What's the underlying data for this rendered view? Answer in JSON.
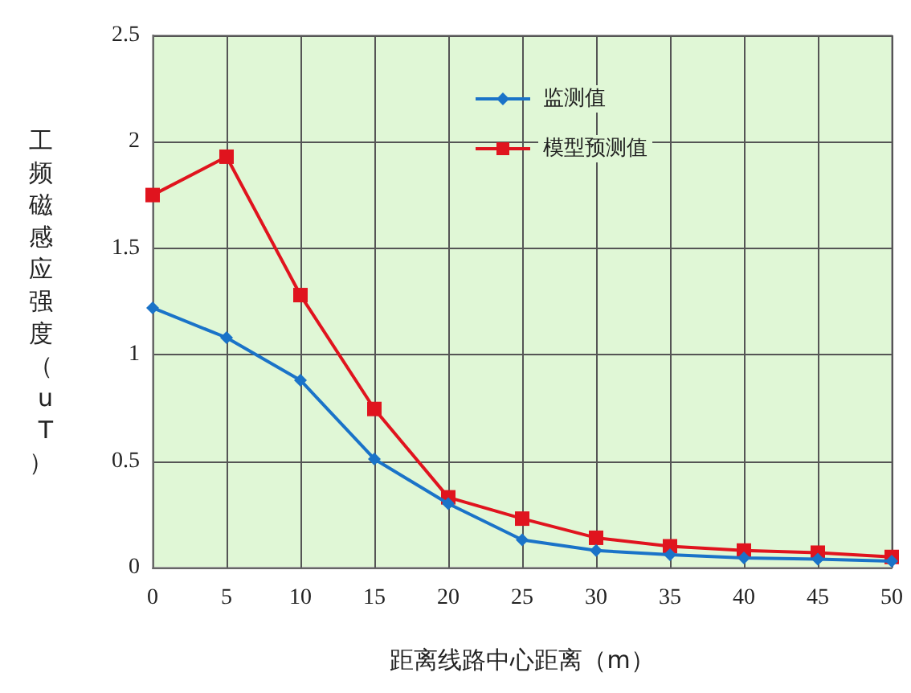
{
  "chart_data": {
    "type": "line",
    "xlabel": "距离线路中心距离（m）",
    "ylabel": "工频磁感应强度（uT）",
    "x": [
      0,
      5,
      10,
      15,
      20,
      25,
      30,
      35,
      40,
      45,
      50
    ],
    "series": [
      {
        "name": "监测值",
        "color": "#1a73c8",
        "marker": "diamond",
        "values": [
          1.22,
          1.08,
          0.88,
          0.51,
          0.3,
          0.13,
          0.08,
          0.06,
          0.045,
          0.04,
          0.03
        ]
      },
      {
        "name": "模型预测值",
        "color": "#e0141e",
        "marker": "square",
        "values": [
          1.75,
          1.93,
          1.28,
          0.745,
          0.33,
          0.23,
          0.14,
          0.1,
          0.08,
          0.07,
          0.05
        ]
      }
    ],
    "xlim": [
      0,
      50
    ],
    "xticks": [
      0,
      5,
      10,
      15,
      20,
      25,
      30,
      35,
      40,
      45,
      50
    ],
    "ylim": [
      0,
      2.5
    ],
    "yticks": [
      0,
      0.5,
      1,
      1.5,
      2,
      2.5
    ],
    "grid": true,
    "legend": "top",
    "line_style": "solid"
  }
}
